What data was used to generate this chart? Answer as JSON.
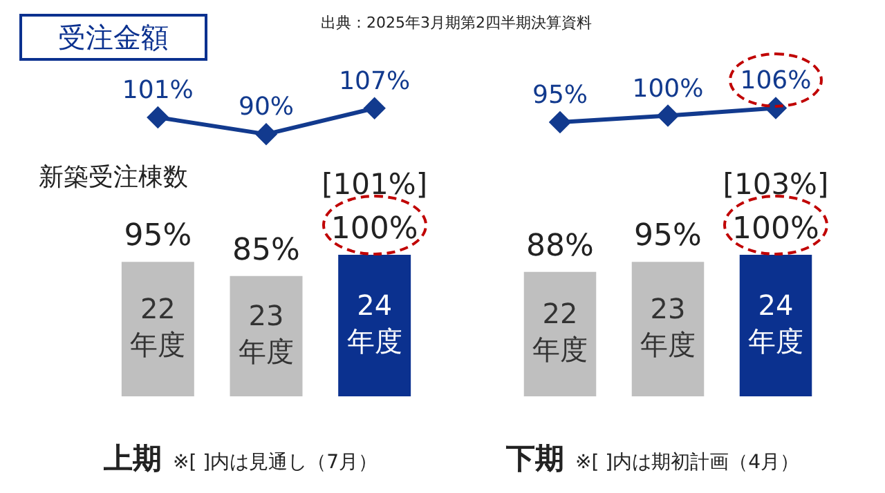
{
  "chart_data": [
    {
      "type": "line",
      "title": "受注金額",
      "marker": "diamond",
      "tick_labels": false,
      "categories": [
        null,
        null,
        null
      ],
      "series": [
        {
          "color": "#123a8e",
          "values": [
            101,
            90,
            107
          ],
          "value_labels": [
            "101%",
            "90%",
            "107%"
          ]
        }
      ],
      "annotations": [
        "出典：2025年3月期第2四半期決算資料"
      ]
    },
    {
      "type": "bar",
      "xlabel": "上期",
      "tick_labels": false,
      "categories": [
        "22 年度",
        "23 年度",
        "24 年度"
      ],
      "series": [
        {
          "colors": [
            "#bfbfbf",
            "#bfbfbf",
            "#0b318f"
          ],
          "values": [
            95,
            85,
            100
          ],
          "value_labels": [
            "95%",
            "85%",
            "100%"
          ]
        }
      ],
      "annotations": [
        "新築受注棟数",
        "[101%]",
        "※[ ]内は見通し（7月）"
      ]
    },
    {
      "type": "line",
      "marker": "diamond",
      "tick_labels": false,
      "categories": [
        null,
        null,
        null
      ],
      "series": [
        {
          "color": "#123a8e",
          "values": [
            95,
            100,
            106
          ],
          "value_labels": [
            "95%",
            "100%",
            "106%"
          ]
        }
      ]
    },
    {
      "type": "bar",
      "xlabel": "下期",
      "tick_labels": false,
      "categories": [
        "22 年度",
        "23 年度",
        "24 年度"
      ],
      "series": [
        {
          "colors": [
            "#bfbfbf",
            "#bfbfbf",
            "#0b318f"
          ],
          "values": [
            88,
            95,
            100
          ],
          "value_labels": [
            "88%",
            "95%",
            "100%"
          ]
        }
      ],
      "annotations": [
        "[103%]",
        "※[ ]内は期初計画（4月）"
      ]
    }
  ]
}
